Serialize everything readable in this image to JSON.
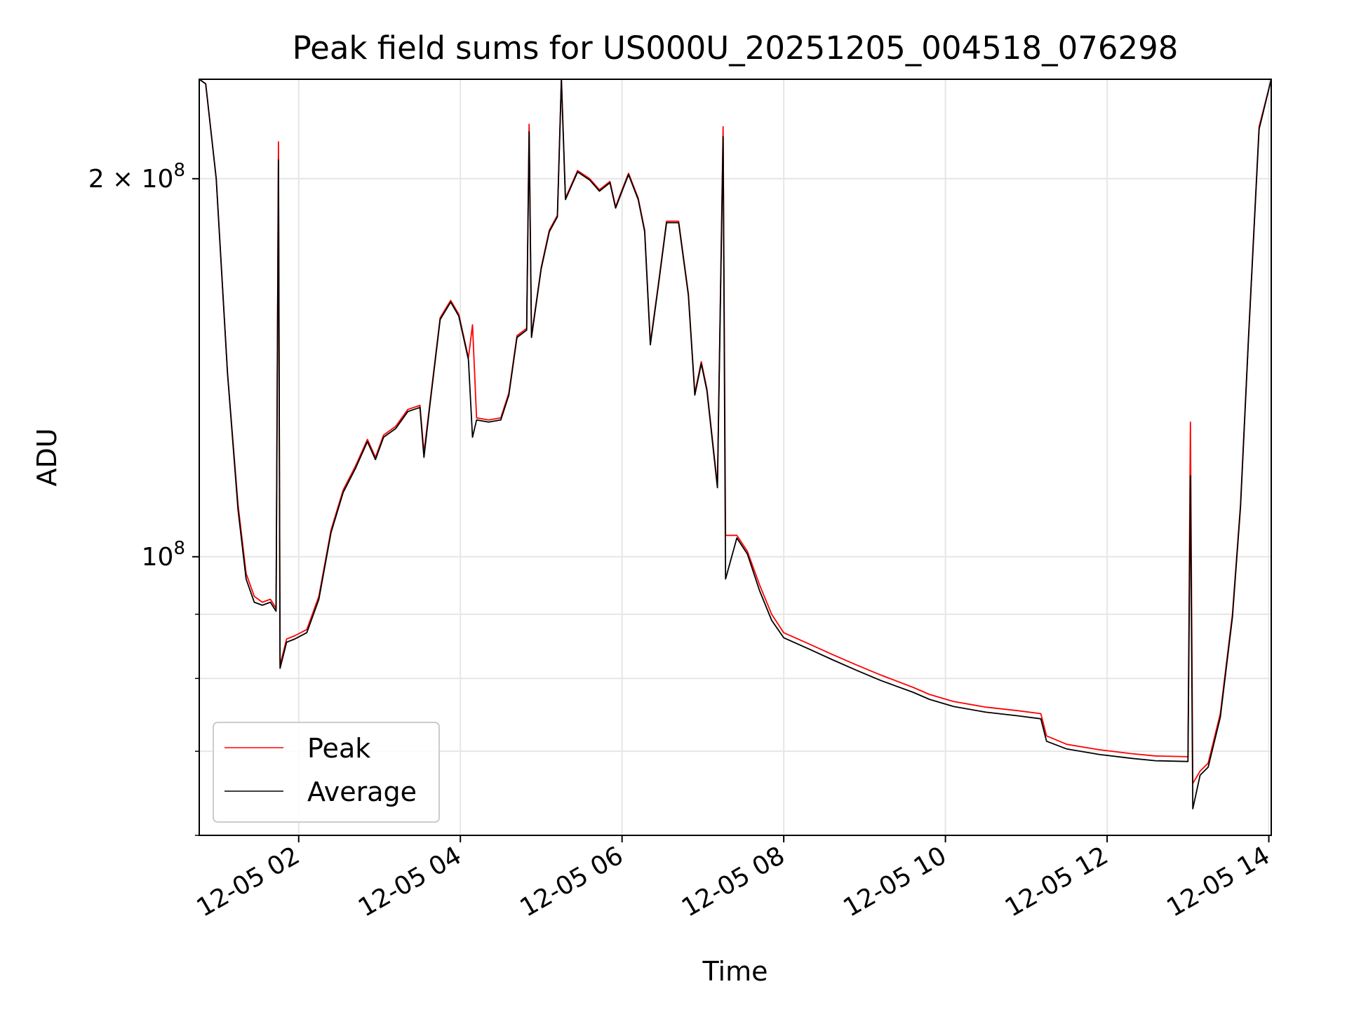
{
  "chart_data": {
    "type": "line",
    "title": "Peak field sums for US000U_20251205_004518_076298",
    "xlabel": "Time",
    "ylabel": "ADU",
    "yscale": "log",
    "grid": true,
    "legend_position": "lower-left",
    "x_range_hours": [
      0.77,
      14.03
    ],
    "ylim": [
      60000000,
      240000000
    ],
    "x_ticks": [
      {
        "hour": 2,
        "label": "12-05 02"
      },
      {
        "hour": 4,
        "label": "12-05 04"
      },
      {
        "hour": 6,
        "label": "12-05 06"
      },
      {
        "hour": 8,
        "label": "12-05 08"
      },
      {
        "hour": 10,
        "label": "12-05 10"
      },
      {
        "hour": 12,
        "label": "12-05 12"
      },
      {
        "hour": 14,
        "label": "12-05 14"
      }
    ],
    "y_major_ticks": [
      {
        "value": 100000000,
        "base": "10",
        "exp": "8",
        "coef": ""
      },
      {
        "value": 200000000,
        "base": "10",
        "exp": "8",
        "coef": "2 × "
      }
    ],
    "y_minor_ticks": [
      60000000,
      70000000,
      80000000,
      90000000
    ],
    "series": [
      {
        "name": "Peak",
        "color": "#ff0000",
        "points": [
          [
            0.77,
            240000000
          ],
          [
            0.85,
            238000000
          ],
          [
            0.98,
            200000000
          ],
          [
            1.12,
            140000000
          ],
          [
            1.25,
            110000000
          ],
          [
            1.35,
            97000000
          ],
          [
            1.45,
            93000000
          ],
          [
            1.55,
            92000000
          ],
          [
            1.65,
            92500000
          ],
          [
            1.72,
            91000000
          ],
          [
            1.75,
            214000000
          ],
          [
            1.77,
            82000000
          ],
          [
            1.85,
            86000000
          ],
          [
            1.95,
            86500000
          ],
          [
            2.1,
            87500000
          ],
          [
            2.25,
            93000000
          ],
          [
            2.4,
            105000000
          ],
          [
            2.55,
            113000000
          ],
          [
            2.7,
            118000000
          ],
          [
            2.85,
            124000000
          ],
          [
            2.95,
            120000000
          ],
          [
            3.05,
            125000000
          ],
          [
            3.2,
            127000000
          ],
          [
            3.35,
            131000000
          ],
          [
            3.5,
            132000000
          ],
          [
            3.55,
            121000000
          ],
          [
            3.62,
            132000000
          ],
          [
            3.75,
            155000000
          ],
          [
            3.88,
            160000000
          ],
          [
            3.98,
            156000000
          ],
          [
            4.1,
            144000000
          ],
          [
            4.15,
            153000000
          ],
          [
            4.2,
            129000000
          ],
          [
            4.35,
            128500000
          ],
          [
            4.5,
            129000000
          ],
          [
            4.6,
            135000000
          ],
          [
            4.7,
            150000000
          ],
          [
            4.82,
            152000000
          ],
          [
            4.85,
            221000000
          ],
          [
            4.88,
            150000000
          ],
          [
            5.0,
            170000000
          ],
          [
            5.1,
            182000000
          ],
          [
            5.2,
            187000000
          ],
          [
            5.25,
            240000000
          ],
          [
            5.3,
            193000000
          ],
          [
            5.45,
            203000000
          ],
          [
            5.6,
            200000000
          ],
          [
            5.72,
            196000000
          ],
          [
            5.85,
            199000000
          ],
          [
            5.92,
            190000000
          ],
          [
            6.0,
            196000000
          ],
          [
            6.08,
            202000000
          ],
          [
            6.2,
            193000000
          ],
          [
            6.28,
            182000000
          ],
          [
            6.35,
            148000000
          ],
          [
            6.45,
            165000000
          ],
          [
            6.55,
            185000000
          ],
          [
            6.7,
            185000000
          ],
          [
            6.82,
            162000000
          ],
          [
            6.9,
            135000000
          ],
          [
            6.98,
            143000000
          ],
          [
            7.05,
            136000000
          ],
          [
            7.18,
            114000000
          ],
          [
            7.25,
            220000000
          ],
          [
            7.28,
            104000000
          ],
          [
            7.42,
            104000000
          ],
          [
            7.55,
            101000000
          ],
          [
            7.7,
            95000000
          ],
          [
            7.85,
            90000000
          ],
          [
            8.0,
            87000000
          ],
          [
            8.3,
            85300000
          ],
          [
            8.6,
            83600000
          ],
          [
            8.9,
            82000000
          ],
          [
            9.2,
            80500000
          ],
          [
            9.6,
            78700000
          ],
          [
            9.8,
            77700000
          ],
          [
            10.1,
            76700000
          ],
          [
            10.5,
            75900000
          ],
          [
            10.9,
            75400000
          ],
          [
            11.18,
            75000000
          ],
          [
            11.25,
            72000000
          ],
          [
            11.5,
            70900000
          ],
          [
            11.9,
            70200000
          ],
          [
            12.3,
            69700000
          ],
          [
            12.6,
            69400000
          ],
          [
            13.0,
            69300000
          ],
          [
            13.03,
            128000000
          ],
          [
            13.06,
            66000000
          ],
          [
            13.15,
            67500000
          ],
          [
            13.25,
            68500000
          ],
          [
            13.4,
            75000000
          ],
          [
            13.55,
            90000000
          ],
          [
            13.65,
            110000000
          ],
          [
            13.75,
            150000000
          ],
          [
            13.88,
            220000000
          ],
          [
            14.03,
            240000000
          ]
        ]
      },
      {
        "name": "Average",
        "color": "#000000",
        "points": [
          [
            0.77,
            240000000
          ],
          [
            0.85,
            238000000
          ],
          [
            0.98,
            200000000
          ],
          [
            1.12,
            140000000
          ],
          [
            1.25,
            109000000
          ],
          [
            1.35,
            96000000
          ],
          [
            1.45,
            92000000
          ],
          [
            1.55,
            91500000
          ],
          [
            1.65,
            92000000
          ],
          [
            1.72,
            90500000
          ],
          [
            1.75,
            207000000
          ],
          [
            1.77,
            81500000
          ],
          [
            1.85,
            85500000
          ],
          [
            1.95,
            86000000
          ],
          [
            2.1,
            87000000
          ],
          [
            2.25,
            92500000
          ],
          [
            2.4,
            104500000
          ],
          [
            2.55,
            112500000
          ],
          [
            2.7,
            117500000
          ],
          [
            2.85,
            123500000
          ],
          [
            2.95,
            119500000
          ],
          [
            3.05,
            124500000
          ],
          [
            3.2,
            126500000
          ],
          [
            3.35,
            130500000
          ],
          [
            3.5,
            131500000
          ],
          [
            3.55,
            120000000
          ],
          [
            3.62,
            131500000
          ],
          [
            3.75,
            154500000
          ],
          [
            3.88,
            159500000
          ],
          [
            3.98,
            155500000
          ],
          [
            4.1,
            143500000
          ],
          [
            4.15,
            124500000
          ],
          [
            4.2,
            128500000
          ],
          [
            4.35,
            128000000
          ],
          [
            4.5,
            128500000
          ],
          [
            4.6,
            134500000
          ],
          [
            4.7,
            149500000
          ],
          [
            4.82,
            151500000
          ],
          [
            4.85,
            218000000
          ],
          [
            4.88,
            149500000
          ],
          [
            5.0,
            169500000
          ],
          [
            5.1,
            181500000
          ],
          [
            5.2,
            186500000
          ],
          [
            5.25,
            240000000
          ],
          [
            5.3,
            192500000
          ],
          [
            5.45,
            202500000
          ],
          [
            5.6,
            199500000
          ],
          [
            5.72,
            195500000
          ],
          [
            5.85,
            198500000
          ],
          [
            5.92,
            189500000
          ],
          [
            6.0,
            195500000
          ],
          [
            6.08,
            201500000
          ],
          [
            6.2,
            192500000
          ],
          [
            6.28,
            181500000
          ],
          [
            6.35,
            147500000
          ],
          [
            6.45,
            164500000
          ],
          [
            6.55,
            184500000
          ],
          [
            6.7,
            184500000
          ],
          [
            6.82,
            161500000
          ],
          [
            6.9,
            134500000
          ],
          [
            6.98,
            142500000
          ],
          [
            7.05,
            135500000
          ],
          [
            7.18,
            113500000
          ],
          [
            7.25,
            216000000
          ],
          [
            7.28,
            96000000
          ],
          [
            7.42,
            103500000
          ],
          [
            7.55,
            100500000
          ],
          [
            7.7,
            94000000
          ],
          [
            7.85,
            89000000
          ],
          [
            8.0,
            86200000
          ],
          [
            8.3,
            84500000
          ],
          [
            8.6,
            82800000
          ],
          [
            8.9,
            81200000
          ],
          [
            9.2,
            79700000
          ],
          [
            9.6,
            78000000
          ],
          [
            9.8,
            77000000
          ],
          [
            10.1,
            76000000
          ],
          [
            10.5,
            75200000
          ],
          [
            10.9,
            74700000
          ],
          [
            11.18,
            74300000
          ],
          [
            11.25,
            71300000
          ],
          [
            11.5,
            70300000
          ],
          [
            11.9,
            69600000
          ],
          [
            12.3,
            69100000
          ],
          [
            12.6,
            68800000
          ],
          [
            13.0,
            68700000
          ],
          [
            13.03,
            116000000
          ],
          [
            13.06,
            63000000
          ],
          [
            13.15,
            67000000
          ],
          [
            13.25,
            68000000
          ],
          [
            13.4,
            74500000
          ],
          [
            13.55,
            89500000
          ],
          [
            13.65,
            109500000
          ],
          [
            13.75,
            149500000
          ],
          [
            13.88,
            219000000
          ],
          [
            14.03,
            240000000
          ]
        ]
      }
    ]
  }
}
